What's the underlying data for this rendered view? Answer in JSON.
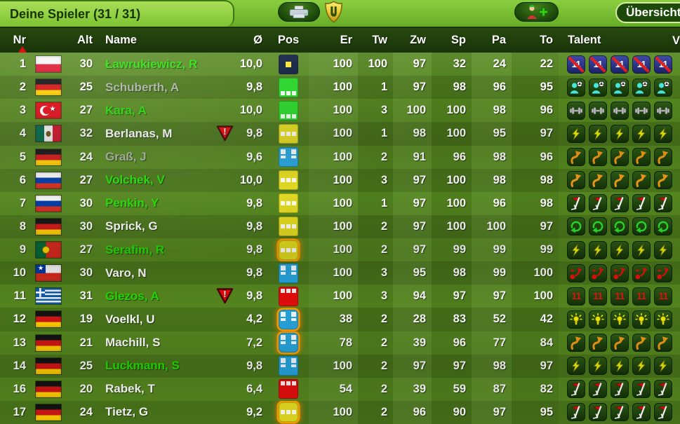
{
  "window": {
    "title": "Deine Spieler (31 / 31)"
  },
  "toolbar": {
    "print_button": {
      "icon": "printer-icon"
    },
    "club_badge": {
      "icon": "shield-badge-icon"
    },
    "add_player_button": {
      "icon": "add-player-icon"
    },
    "overview_button": {
      "label": "Übersicht"
    }
  },
  "table": {
    "columns": {
      "nr": "Nr",
      "alt": "Alt",
      "name": "Name",
      "avg": "Ø",
      "pos": "Pos",
      "er": "Er",
      "tw": "Tw",
      "zw": "Zw",
      "sp": "Sp",
      "pa": "Pa",
      "to": "To",
      "talent": "Talent",
      "v": "V"
    },
    "sort": {
      "column": "Nr",
      "direction": "ascending"
    },
    "players": [
      {
        "nr": "1",
        "flag": "pl",
        "alt": "30",
        "name": "Ławrukiewicz, R",
        "name_color": "green",
        "warning": false,
        "avg": "10,0",
        "pos": "gk",
        "pos_glow": false,
        "stats": {
          "er": "100",
          "tw": "100",
          "zw": "97",
          "sp": "32",
          "pa": "24",
          "to": "22"
        },
        "talent": "penalty-killer",
        "talent_level": 5
      },
      {
        "nr": "2",
        "flag": "de",
        "alt": "25",
        "name": "Schuberth, A",
        "name_color": "gray",
        "warning": false,
        "avg": "9,8",
        "pos": "def",
        "pos_glow": false,
        "stats": {
          "er": "100",
          "tw": "1",
          "zw": "97",
          "sp": "98",
          "pa": "96",
          "to": "95"
        },
        "talent": "playmaker",
        "talent_level": 5
      },
      {
        "nr": "3",
        "flag": "tr",
        "alt": "27",
        "name": "Kara, A",
        "name_color": "green",
        "warning": false,
        "avg": "10,0",
        "pos": "def",
        "pos_glow": false,
        "stats": {
          "er": "100",
          "tw": "3",
          "zw": "100",
          "sp": "100",
          "pa": "98",
          "to": "96"
        },
        "talent": "strength",
        "talent_level": 5
      },
      {
        "nr": "4",
        "flag": "mx",
        "alt": "32",
        "name": "Berlanas, M",
        "name_color": "white",
        "warning": true,
        "avg": "9,8",
        "pos": "mid",
        "pos_glow": false,
        "stats": {
          "er": "100",
          "tw": "1",
          "zw": "98",
          "sp": "100",
          "pa": "95",
          "to": "97"
        },
        "talent": "speed",
        "talent_level": 5
      },
      {
        "nr": "5",
        "flag": "de",
        "alt": "24",
        "name": "Graß, J",
        "name_color": "gray",
        "warning": false,
        "avg": "9,6",
        "pos": "wing",
        "pos_glow": false,
        "stats": {
          "er": "100",
          "tw": "2",
          "zw": "91",
          "sp": "96",
          "pa": "98",
          "to": "96"
        },
        "talent": "dribbling",
        "talent_level": 5
      },
      {
        "nr": "6",
        "flag": "ru",
        "alt": "27",
        "name": "Volchek, V",
        "name_color": "green",
        "warning": false,
        "avg": "10,0",
        "pos": "mid",
        "pos_glow": false,
        "stats": {
          "er": "100",
          "tw": "3",
          "zw": "97",
          "sp": "100",
          "pa": "98",
          "to": "98"
        },
        "talent": "dribbling",
        "talent_level": 5
      },
      {
        "nr": "7",
        "flag": "ru",
        "alt": "30",
        "name": "Penkin, Y",
        "name_color": "green",
        "warning": false,
        "avg": "9,8",
        "pos": "mid",
        "pos_glow": false,
        "stats": {
          "er": "100",
          "tw": "1",
          "zw": "97",
          "sp": "100",
          "pa": "96",
          "to": "98"
        },
        "talent": "corner-flag",
        "talent_level": 5
      },
      {
        "nr": "8",
        "flag": "de",
        "alt": "30",
        "name": "Sprick, G",
        "name_color": "white",
        "warning": false,
        "avg": "9,8",
        "pos": "mid",
        "pos_glow": false,
        "stats": {
          "er": "100",
          "tw": "2",
          "zw": "97",
          "sp": "100",
          "pa": "100",
          "to": "97"
        },
        "talent": "loop-arrow",
        "talent_level": 5
      },
      {
        "nr": "9",
        "flag": "pt",
        "alt": "27",
        "name": "Serafim, R",
        "name_color": "green",
        "warning": false,
        "avg": "9,8",
        "pos": "mid",
        "pos_glow": true,
        "stats": {
          "er": "100",
          "tw": "2",
          "zw": "97",
          "sp": "99",
          "pa": "99",
          "to": "99"
        },
        "talent": "speed",
        "talent_level": 5
      },
      {
        "nr": "10",
        "flag": "cl",
        "alt": "30",
        "name": "Varo, N",
        "name_color": "white",
        "warning": false,
        "avg": "9,8",
        "pos": "wing",
        "pos_glow": false,
        "stats": {
          "er": "100",
          "tw": "3",
          "zw": "95",
          "sp": "98",
          "pa": "99",
          "to": "100"
        },
        "talent": "shot-arrow",
        "talent_level": 5
      },
      {
        "nr": "11",
        "flag": "gr",
        "alt": "31",
        "name": "Glezos, A",
        "name_color": "green",
        "warning": true,
        "avg": "9,8",
        "pos": "st",
        "pos_glow": false,
        "stats": {
          "er": "100",
          "tw": "3",
          "zw": "94",
          "sp": "97",
          "pa": "97",
          "to": "100"
        },
        "talent": "penalty-taker",
        "talent_level": 5
      },
      {
        "nr": "12",
        "flag": "de",
        "alt": "19",
        "name": "Voelkl, U",
        "name_color": "white",
        "warning": false,
        "avg": "4,2",
        "pos": "wing",
        "pos_glow": true,
        "stats": {
          "er": "38",
          "tw": "2",
          "zw": "28",
          "sp": "83",
          "pa": "52",
          "to": "42"
        },
        "talent": "lightbulb",
        "talent_level": 5
      },
      {
        "nr": "13",
        "flag": "de",
        "alt": "21",
        "name": "Machill, S",
        "name_color": "white",
        "warning": false,
        "avg": "7,2",
        "pos": "wing",
        "pos_glow": true,
        "stats": {
          "er": "78",
          "tw": "2",
          "zw": "39",
          "sp": "96",
          "pa": "77",
          "to": "84"
        },
        "talent": "dribbling",
        "talent_level": 5
      },
      {
        "nr": "14",
        "flag": "de",
        "alt": "25",
        "name": "Luckmann, S",
        "name_color": "green",
        "warning": false,
        "avg": "9,8",
        "pos": "wing",
        "pos_glow": false,
        "stats": {
          "er": "100",
          "tw": "2",
          "zw": "97",
          "sp": "97",
          "pa": "98",
          "to": "97"
        },
        "talent": "speed",
        "talent_level": 5
      },
      {
        "nr": "16",
        "flag": "de",
        "alt": "20",
        "name": "Rabek, T",
        "name_color": "white",
        "warning": false,
        "avg": "6,4",
        "pos": "st",
        "pos_glow": false,
        "stats": {
          "er": "54",
          "tw": "2",
          "zw": "39",
          "sp": "59",
          "pa": "87",
          "to": "82"
        },
        "talent": "corner-flag",
        "talent_level": 5
      },
      {
        "nr": "17",
        "flag": "de",
        "alt": "24",
        "name": "Tietz, G",
        "name_color": "white",
        "warning": false,
        "avg": "9,2",
        "pos": "mid",
        "pos_glow": true,
        "stats": {
          "er": "100",
          "tw": "2",
          "zw": "96",
          "sp": "90",
          "pa": "97",
          "to": "95"
        },
        "talent": "corner-flag",
        "talent_level": 5
      }
    ]
  },
  "icon_legend": {
    "penalty-killer": "white 11 crossed by red slash on blue tile",
    "penalty-taker": "red 11",
    "playmaker": "cyan player figure with football",
    "strength": "gray dumbbell",
    "speed": "yellow lightning bolt",
    "dribbling": "orange curved arrow",
    "corner-flag": "corner flag with red pennant",
    "loop-arrow": "green loop arrow",
    "shot-arrow": "red ball with dashed arrow",
    "lightbulb": "yellow light bulb",
    "warning": "red inverted triangle with !"
  },
  "colors": {
    "name_green": "#23e005",
    "name_gray": "#a9b3a2",
    "name_white": "#ffffff",
    "pos_gk": "#0b1b3d",
    "pos_def": "#28d428",
    "pos_mid": "#e4dc20",
    "pos_wing": "#27a6df",
    "pos_st": "#e60d0d",
    "pos_glow": "#ffa200",
    "warning_red": "#ec0b0b",
    "topbar_green": "#7cc232",
    "header_dark": "#1e3c0c"
  }
}
